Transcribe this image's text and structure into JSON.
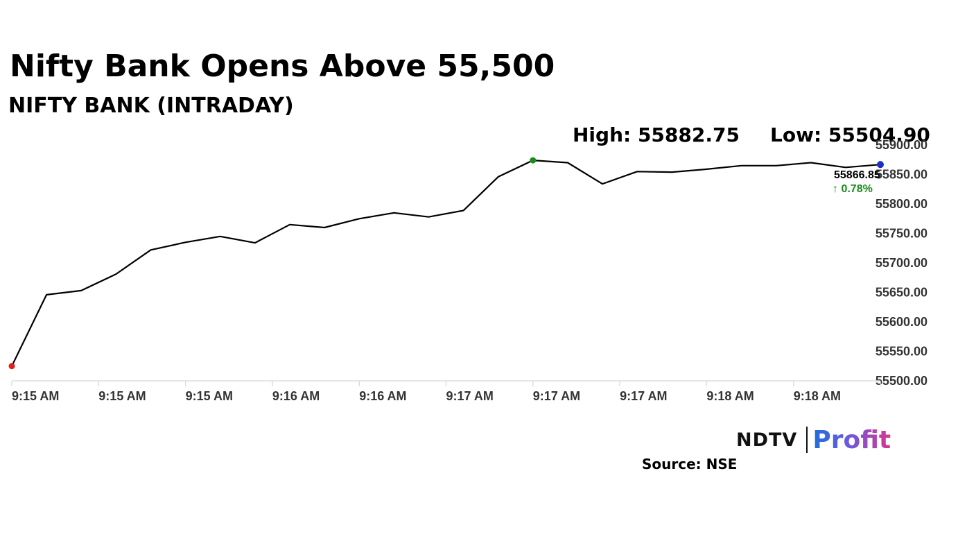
{
  "header": {
    "title": "Nifty Bank Opens Above 55,500",
    "subtitle": "NIFTY BANK (INTRADAY)",
    "high_text": "High: 55882.75",
    "low_text": "Low: 55504.90"
  },
  "footer": {
    "brand_left": "NDTV",
    "brand_right": "Profit",
    "source": "Source: NSE"
  },
  "colors": {
    "line": "#000000",
    "start_marker": "#e0201b",
    "high_marker": "#1a8a1a",
    "last_marker": "#1b2fc9",
    "change_up": "#1a8a1a",
    "axis": "#dddddd",
    "tick_text": "#333333"
  },
  "chart_data": {
    "type": "line",
    "title": "NIFTY BANK (INTRADAY)",
    "x": [
      "9:15 AM",
      "",
      "",
      "",
      "",
      "",
      "",
      "",
      "",
      "",
      "",
      "",
      "",
      "",
      "",
      "",
      "",
      "",
      "",
      "",
      "",
      "",
      "",
      "",
      "",
      ""
    ],
    "x_tick_labels": [
      "9:15 AM",
      "9:15 AM",
      "9:15 AM",
      "9:16 AM",
      "9:16 AM",
      "9:17 AM",
      "9:17 AM",
      "9:17 AM",
      "9:18 AM",
      "9:18 AM"
    ],
    "series": [
      {
        "values": [
          55525,
          55646,
          55653,
          55681,
          55722,
          55735,
          55745,
          55734,
          55765,
          55760,
          55775,
          55785,
          55778,
          55789,
          55846,
          55874,
          55870,
          55834,
          55855,
          55854,
          55859,
          55865,
          55865,
          55870,
          55862,
          55866.85
        ]
      }
    ],
    "ylim": [
      55500,
      55900
    ],
    "y_ticks": [
      55500,
      55550,
      55600,
      55650,
      55700,
      55750,
      55800,
      55850,
      55900
    ],
    "last_value_label": "55866.85",
    "change_label": "↑ 0.78%",
    "grid": false,
    "y_axis_side": "right"
  }
}
